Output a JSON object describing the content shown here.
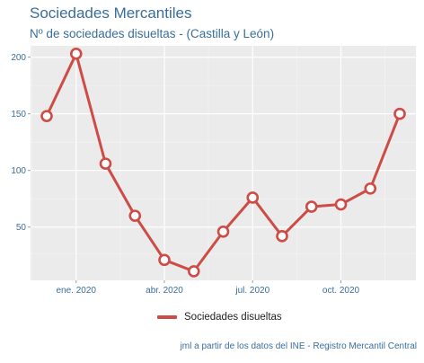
{
  "header": {
    "title": "Sociedades Mercantiles",
    "subtitle": "Nº de sociedades disueltas - (Castilla y León)"
  },
  "caption": "jml a partir de los datos del INE - Registro Mercantil Central",
  "chart_data": {
    "type": "line",
    "x": [
      "2019-12",
      "2020-01",
      "2020-02",
      "2020-03",
      "2020-04",
      "2020-05",
      "2020-06",
      "2020-07",
      "2020-08",
      "2020-09",
      "2020-10",
      "2020-11",
      "2020-12"
    ],
    "series": [
      {
        "name": "Sociedades disueltas",
        "color": "#cd4c46",
        "values": [
          148,
          203,
          106,
          60,
          21,
          11,
          46,
          76,
          42,
          68,
          70,
          84,
          150
        ]
      }
    ],
    "x_tick_labels": [
      "ene. 2020",
      "abr. 2020",
      "jul. 2020",
      "oct. 2020"
    ],
    "x_tick_at": [
      "2020-01",
      "2020-04",
      "2020-07",
      "2020-10"
    ],
    "y_ticks": [
      50,
      100,
      150,
      200
    ],
    "ylim": [
      3,
      210
    ],
    "grid": true,
    "legend_position": "bottom",
    "panel_background": "#ebebeb"
  }
}
